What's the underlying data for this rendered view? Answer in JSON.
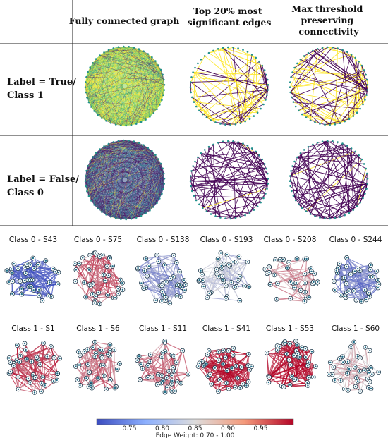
{
  "table": {
    "col_headers": [
      [
        "Fully connected graph"
      ],
      [
        "Top 20% most",
        "significant edges"
      ],
      [
        "Max threshold",
        "preserving",
        "connectivity"
      ]
    ],
    "row_labels": [
      [
        "Label = True/",
        "Class 1"
      ],
      [
        "Label = False/",
        "Class 0"
      ]
    ]
  },
  "panels": {
    "class0": [
      "Class 0 - S43",
      "Class 0 - S75",
      "Class 0 - S138",
      "Class 0 - S193",
      "Class 0 - S208",
      "Class 0 - S244"
    ],
    "class1": [
      "Class 1 - S1",
      "Class 1 - S6",
      "Class 1 - S11",
      "Class 1 - S41",
      "Class 1 - S53",
      "Class 1 - S60"
    ]
  },
  "colorbar": {
    "ticks": [
      "0.75",
      "0.80",
      "0.85",
      "0.90",
      "0.95"
    ],
    "label": "Edge Weight: 0.70 - 1.00",
    "range": [
      0.7,
      1.0
    ]
  },
  "colors": {
    "viridis_dark": "#440154",
    "viridis_teal": "#21918c",
    "viridis_yellow": "#fde725",
    "coolwarm_blue": "#3b4cc0",
    "coolwarm_mid": "#dddddd",
    "coolwarm_red": "#b40426"
  }
}
